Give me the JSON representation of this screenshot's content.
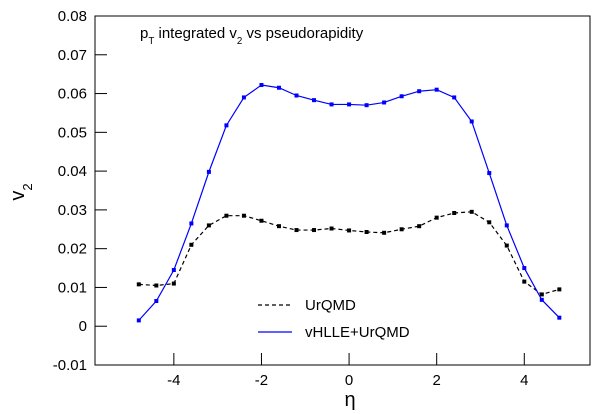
{
  "chart_data": {
    "type": "line",
    "title_parts": [
      {
        "text": "p"
      },
      {
        "text": "T",
        "sub": true
      },
      {
        "text": " integrated v"
      },
      {
        "text": "2",
        "sub": true
      },
      {
        "text": " vs pseudorapidity"
      }
    ],
    "x_label": "η",
    "y_label_parts": [
      {
        "text": "v"
      },
      {
        "text": "2",
        "sub": true
      }
    ],
    "x": [
      -4.8,
      -4.4,
      -4.0,
      -3.6,
      -3.2,
      -2.8,
      -2.4,
      -2.0,
      -1.6,
      -1.2,
      -0.8,
      -0.4,
      0,
      0.4,
      0.8,
      1.2,
      1.6,
      2.0,
      2.4,
      2.8,
      3.2,
      3.6,
      4.0,
      4.4,
      4.8
    ],
    "series": [
      {
        "name": "UrQMD",
        "color": "#000000",
        "dashed": true,
        "values": [
          0.0108,
          0.0105,
          0.011,
          0.021,
          0.026,
          0.0285,
          0.0285,
          0.0272,
          0.0258,
          0.0248,
          0.0248,
          0.0252,
          0.0247,
          0.0243,
          0.0241,
          0.025,
          0.0258,
          0.028,
          0.0292,
          0.0295,
          0.0268,
          0.0208,
          0.0115,
          0.0082,
          0.0095
        ]
      },
      {
        "name": "vHLLE+UrQMD",
        "color": "#0000ff",
        "dashed": false,
        "values": [
          0.0015,
          0.0065,
          0.0145,
          0.0265,
          0.0398,
          0.0518,
          0.059,
          0.0622,
          0.0615,
          0.0595,
          0.0583,
          0.0572,
          0.0572,
          0.057,
          0.0577,
          0.0593,
          0.0606,
          0.061,
          0.059,
          0.0528,
          0.0395,
          0.026,
          0.015,
          0.0068,
          0.0022
        ]
      }
    ],
    "xlim": [
      -5.8,
      5.5
    ],
    "ylim": [
      -0.01,
      0.08
    ],
    "xticks": [
      -4,
      -2,
      0,
      2,
      4
    ],
    "yticks": [
      -0.01,
      0,
      0.01,
      0.02,
      0.03,
      0.04,
      0.05,
      0.06,
      0.07,
      0.08
    ],
    "grid": false
  }
}
